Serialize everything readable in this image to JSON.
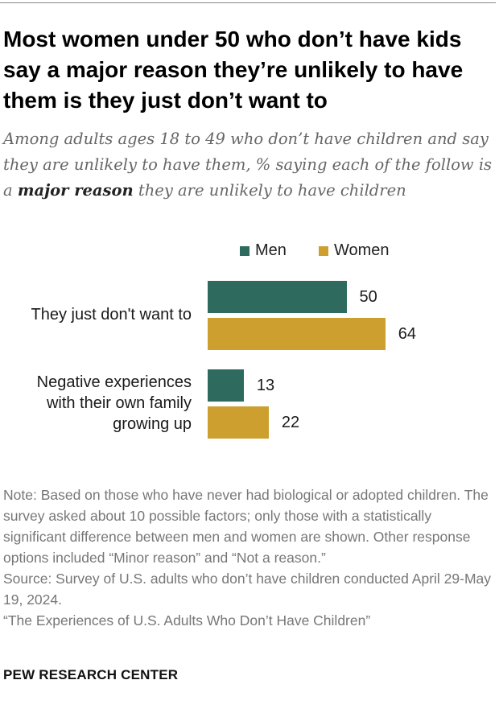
{
  "title": "Most women under 50 who don’t have kids say a major reason they’re unlikely to have them is they just don’t want to",
  "subtitle": {
    "before": "Among adults ages 18 to 49 who don’t have children and say they are unlikely to have them, % saying each of the follow is a ",
    "emphasis": "major reason",
    "after": " they are unlikely to have children"
  },
  "chart_data": {
    "type": "bar",
    "orientation": "horizontal",
    "categories": [
      "They just don't want to",
      "Negative experiences with their own family growing up"
    ],
    "category_lines": [
      [
        "They just don't want to"
      ],
      [
        "Negative experiences",
        "with their own family",
        "growing up"
      ]
    ],
    "series": [
      {
        "name": "Men",
        "color": "#2e6b5e",
        "values": [
          50,
          13
        ]
      },
      {
        "name": "Women",
        "color": "#cc9f2e",
        "values": [
          64,
          22
        ]
      }
    ],
    "xlim": [
      0,
      100
    ],
    "legend_position": "top"
  },
  "note": {
    "note_text": "Note: Based on those who have never had biological or adopted children. The survey asked about 10 possible factors; only those with a statistically significant difference between men and women are shown. Other response options included “Minor reason” and “Not a reason.”",
    "source_text": "Source: Survey of U.S. adults who don’t have children conducted April 29-May 19, 2024.",
    "report_title": "“The Experiences of U.S. Adults Who Don’t Have Children”"
  },
  "footer": "PEW RESEARCH CENTER"
}
